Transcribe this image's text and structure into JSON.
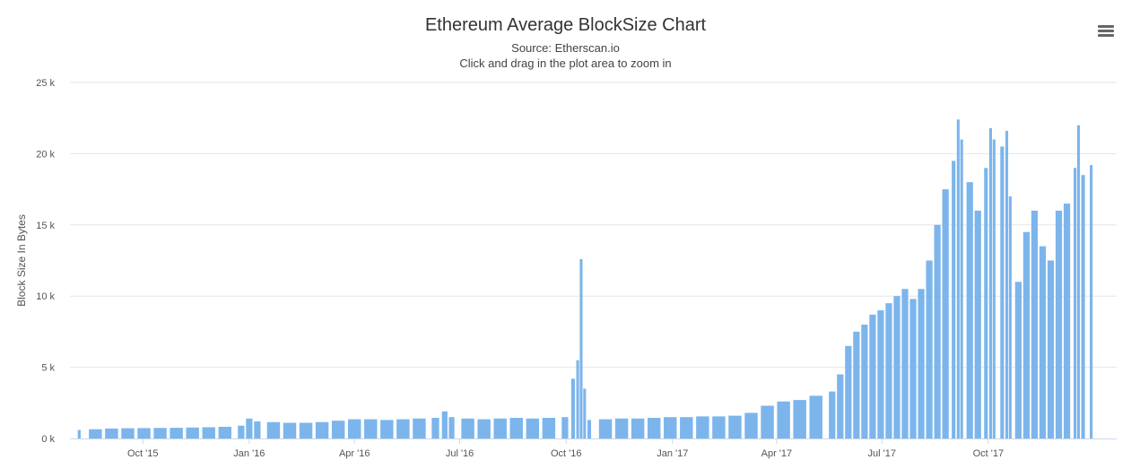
{
  "chart_data": {
    "type": "bar",
    "title": "Ethereum Average BlockSize Chart",
    "subtitle": "Source: Etherscan.io",
    "zoom_hint": "Click and drag in the plot area to zoom in",
    "ylabel": "Block Size In Bytes",
    "xlabel": "",
    "ylim": [
      0,
      25000
    ],
    "yticks": [
      {
        "value": 0,
        "label": "0 k"
      },
      {
        "value": 5000,
        "label": "5 k"
      },
      {
        "value": 10000,
        "label": "10 k"
      },
      {
        "value": 15000,
        "label": "15 k"
      },
      {
        "value": 20000,
        "label": "20 k"
      },
      {
        "value": 25000,
        "label": "25 k"
      }
    ],
    "xlim": [
      "2015-07-30",
      "2018-01-20"
    ],
    "xticks": [
      {
        "date": "2015-10-01",
        "label": "Oct '15"
      },
      {
        "date": "2016-01-01",
        "label": "Jan '16"
      },
      {
        "date": "2016-04-01",
        "label": "Apr '16"
      },
      {
        "date": "2016-07-01",
        "label": "Jul '16"
      },
      {
        "date": "2016-10-01",
        "label": "Oct '16"
      },
      {
        "date": "2017-01-01",
        "label": "Jan '17"
      },
      {
        "date": "2017-04-01",
        "label": "Apr '17"
      },
      {
        "date": "2017-07-01",
        "label": "Jul '17"
      },
      {
        "date": "2017-10-01",
        "label": "Oct '17"
      }
    ],
    "grid": true,
    "legend": "none",
    "bar_color": "#7cb5ec",
    "series": [
      {
        "points": [
          [
            "2015-08-07",
            600
          ],
          [
            "2015-08-21",
            650
          ],
          [
            "2015-09-04",
            700
          ],
          [
            "2015-09-18",
            720
          ],
          [
            "2015-10-02",
            730
          ],
          [
            "2015-10-16",
            740
          ],
          [
            "2015-10-30",
            750
          ],
          [
            "2015-11-13",
            770
          ],
          [
            "2015-11-27",
            790
          ],
          [
            "2015-12-11",
            820
          ],
          [
            "2015-12-25",
            900
          ],
          [
            "2016-01-01",
            1400
          ],
          [
            "2016-01-08",
            1200
          ],
          [
            "2016-01-22",
            1150
          ],
          [
            "2016-02-05",
            1100
          ],
          [
            "2016-02-19",
            1100
          ],
          [
            "2016-03-04",
            1150
          ],
          [
            "2016-03-18",
            1250
          ],
          [
            "2016-04-01",
            1350
          ],
          [
            "2016-04-15",
            1350
          ],
          [
            "2016-04-29",
            1300
          ],
          [
            "2016-05-13",
            1350
          ],
          [
            "2016-05-27",
            1400
          ],
          [
            "2016-06-10",
            1450
          ],
          [
            "2016-06-18",
            1900
          ],
          [
            "2016-06-24",
            1500
          ],
          [
            "2016-07-08",
            1400
          ],
          [
            "2016-07-22",
            1350
          ],
          [
            "2016-08-05",
            1400
          ],
          [
            "2016-08-19",
            1450
          ],
          [
            "2016-09-02",
            1400
          ],
          [
            "2016-09-16",
            1450
          ],
          [
            "2016-09-30",
            1500
          ],
          [
            "2016-10-07",
            4200
          ],
          [
            "2016-10-11",
            5500
          ],
          [
            "2016-10-14",
            12600
          ],
          [
            "2016-10-17",
            3500
          ],
          [
            "2016-10-21",
            1300
          ],
          [
            "2016-11-04",
            1350
          ],
          [
            "2016-11-18",
            1400
          ],
          [
            "2016-12-02",
            1400
          ],
          [
            "2016-12-16",
            1450
          ],
          [
            "2016-12-30",
            1500
          ],
          [
            "2017-01-13",
            1500
          ],
          [
            "2017-01-27",
            1550
          ],
          [
            "2017-02-10",
            1550
          ],
          [
            "2017-02-24",
            1600
          ],
          [
            "2017-03-10",
            1800
          ],
          [
            "2017-03-24",
            2300
          ],
          [
            "2017-04-07",
            2600
          ],
          [
            "2017-04-21",
            2700
          ],
          [
            "2017-05-05",
            3000
          ],
          [
            "2017-05-19",
            3300
          ],
          [
            "2017-05-26",
            4500
          ],
          [
            "2017-06-02",
            6500
          ],
          [
            "2017-06-09",
            7500
          ],
          [
            "2017-06-16",
            8000
          ],
          [
            "2017-06-23",
            8700
          ],
          [
            "2017-06-30",
            9000
          ],
          [
            "2017-07-07",
            9500
          ],
          [
            "2017-07-14",
            10000
          ],
          [
            "2017-07-21",
            10500
          ],
          [
            "2017-07-28",
            9800
          ],
          [
            "2017-08-04",
            10500
          ],
          [
            "2017-08-11",
            12500
          ],
          [
            "2017-08-18",
            15000
          ],
          [
            "2017-08-25",
            17500
          ],
          [
            "2017-09-01",
            19500
          ],
          [
            "2017-09-05",
            22400
          ],
          [
            "2017-09-08",
            21000
          ],
          [
            "2017-09-15",
            18000
          ],
          [
            "2017-09-22",
            16000
          ],
          [
            "2017-09-29",
            19000
          ],
          [
            "2017-10-03",
            21800
          ],
          [
            "2017-10-06",
            21000
          ],
          [
            "2017-10-13",
            20500
          ],
          [
            "2017-10-17",
            21600
          ],
          [
            "2017-10-20",
            17000
          ],
          [
            "2017-10-27",
            11000
          ],
          [
            "2017-11-03",
            14500
          ],
          [
            "2017-11-10",
            16000
          ],
          [
            "2017-11-17",
            13500
          ],
          [
            "2017-11-24",
            12500
          ],
          [
            "2017-12-01",
            16000
          ],
          [
            "2017-12-08",
            16500
          ],
          [
            "2017-12-15",
            19000
          ],
          [
            "2017-12-18",
            22000
          ],
          [
            "2017-12-22",
            18500
          ],
          [
            "2017-12-29",
            19200
          ]
        ]
      }
    ]
  }
}
